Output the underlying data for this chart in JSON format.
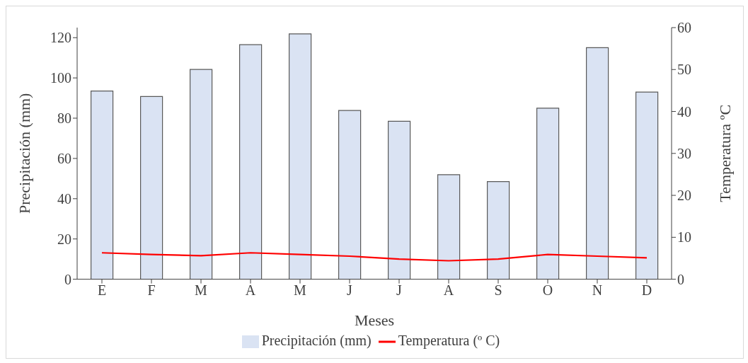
{
  "chart_data": {
    "type": "bar",
    "xlabel": "Meses",
    "ylabel": "Precipitación (mm)",
    "y2label": "Temperatura ºC",
    "categories": [
      "E",
      "F",
      "M",
      "A",
      "M",
      "J",
      "J",
      "A",
      "S",
      "O",
      "N",
      "D"
    ],
    "series": [
      {
        "name": "Precipitación (mm)",
        "color": "#dae3f3",
        "values": [
          93.5,
          90.8,
          104.2,
          116.5,
          121.9,
          83.8,
          78.5,
          51.9,
          48.5,
          85,
          115,
          93
        ]
      },
      {
        "name": "Temperatura (º C)",
        "type": "line",
        "axis": "y2",
        "color": "#ff0000",
        "values": [
          6.3,
          5.9,
          5.6,
          6.3,
          5.9,
          5.5,
          4.8,
          4.4,
          4.8,
          5.9,
          5.5,
          5.1
        ]
      }
    ],
    "ylim": [
      0,
      125
    ],
    "yticks": [
      0,
      20,
      40,
      60,
      80,
      100,
      120
    ],
    "y2lim": [
      0,
      60
    ],
    "y2ticks": [
      0,
      10,
      20,
      30,
      40,
      50,
      60
    ],
    "grid": false,
    "legend": "bottom",
    "marker": "none",
    "line_style": "solid"
  }
}
